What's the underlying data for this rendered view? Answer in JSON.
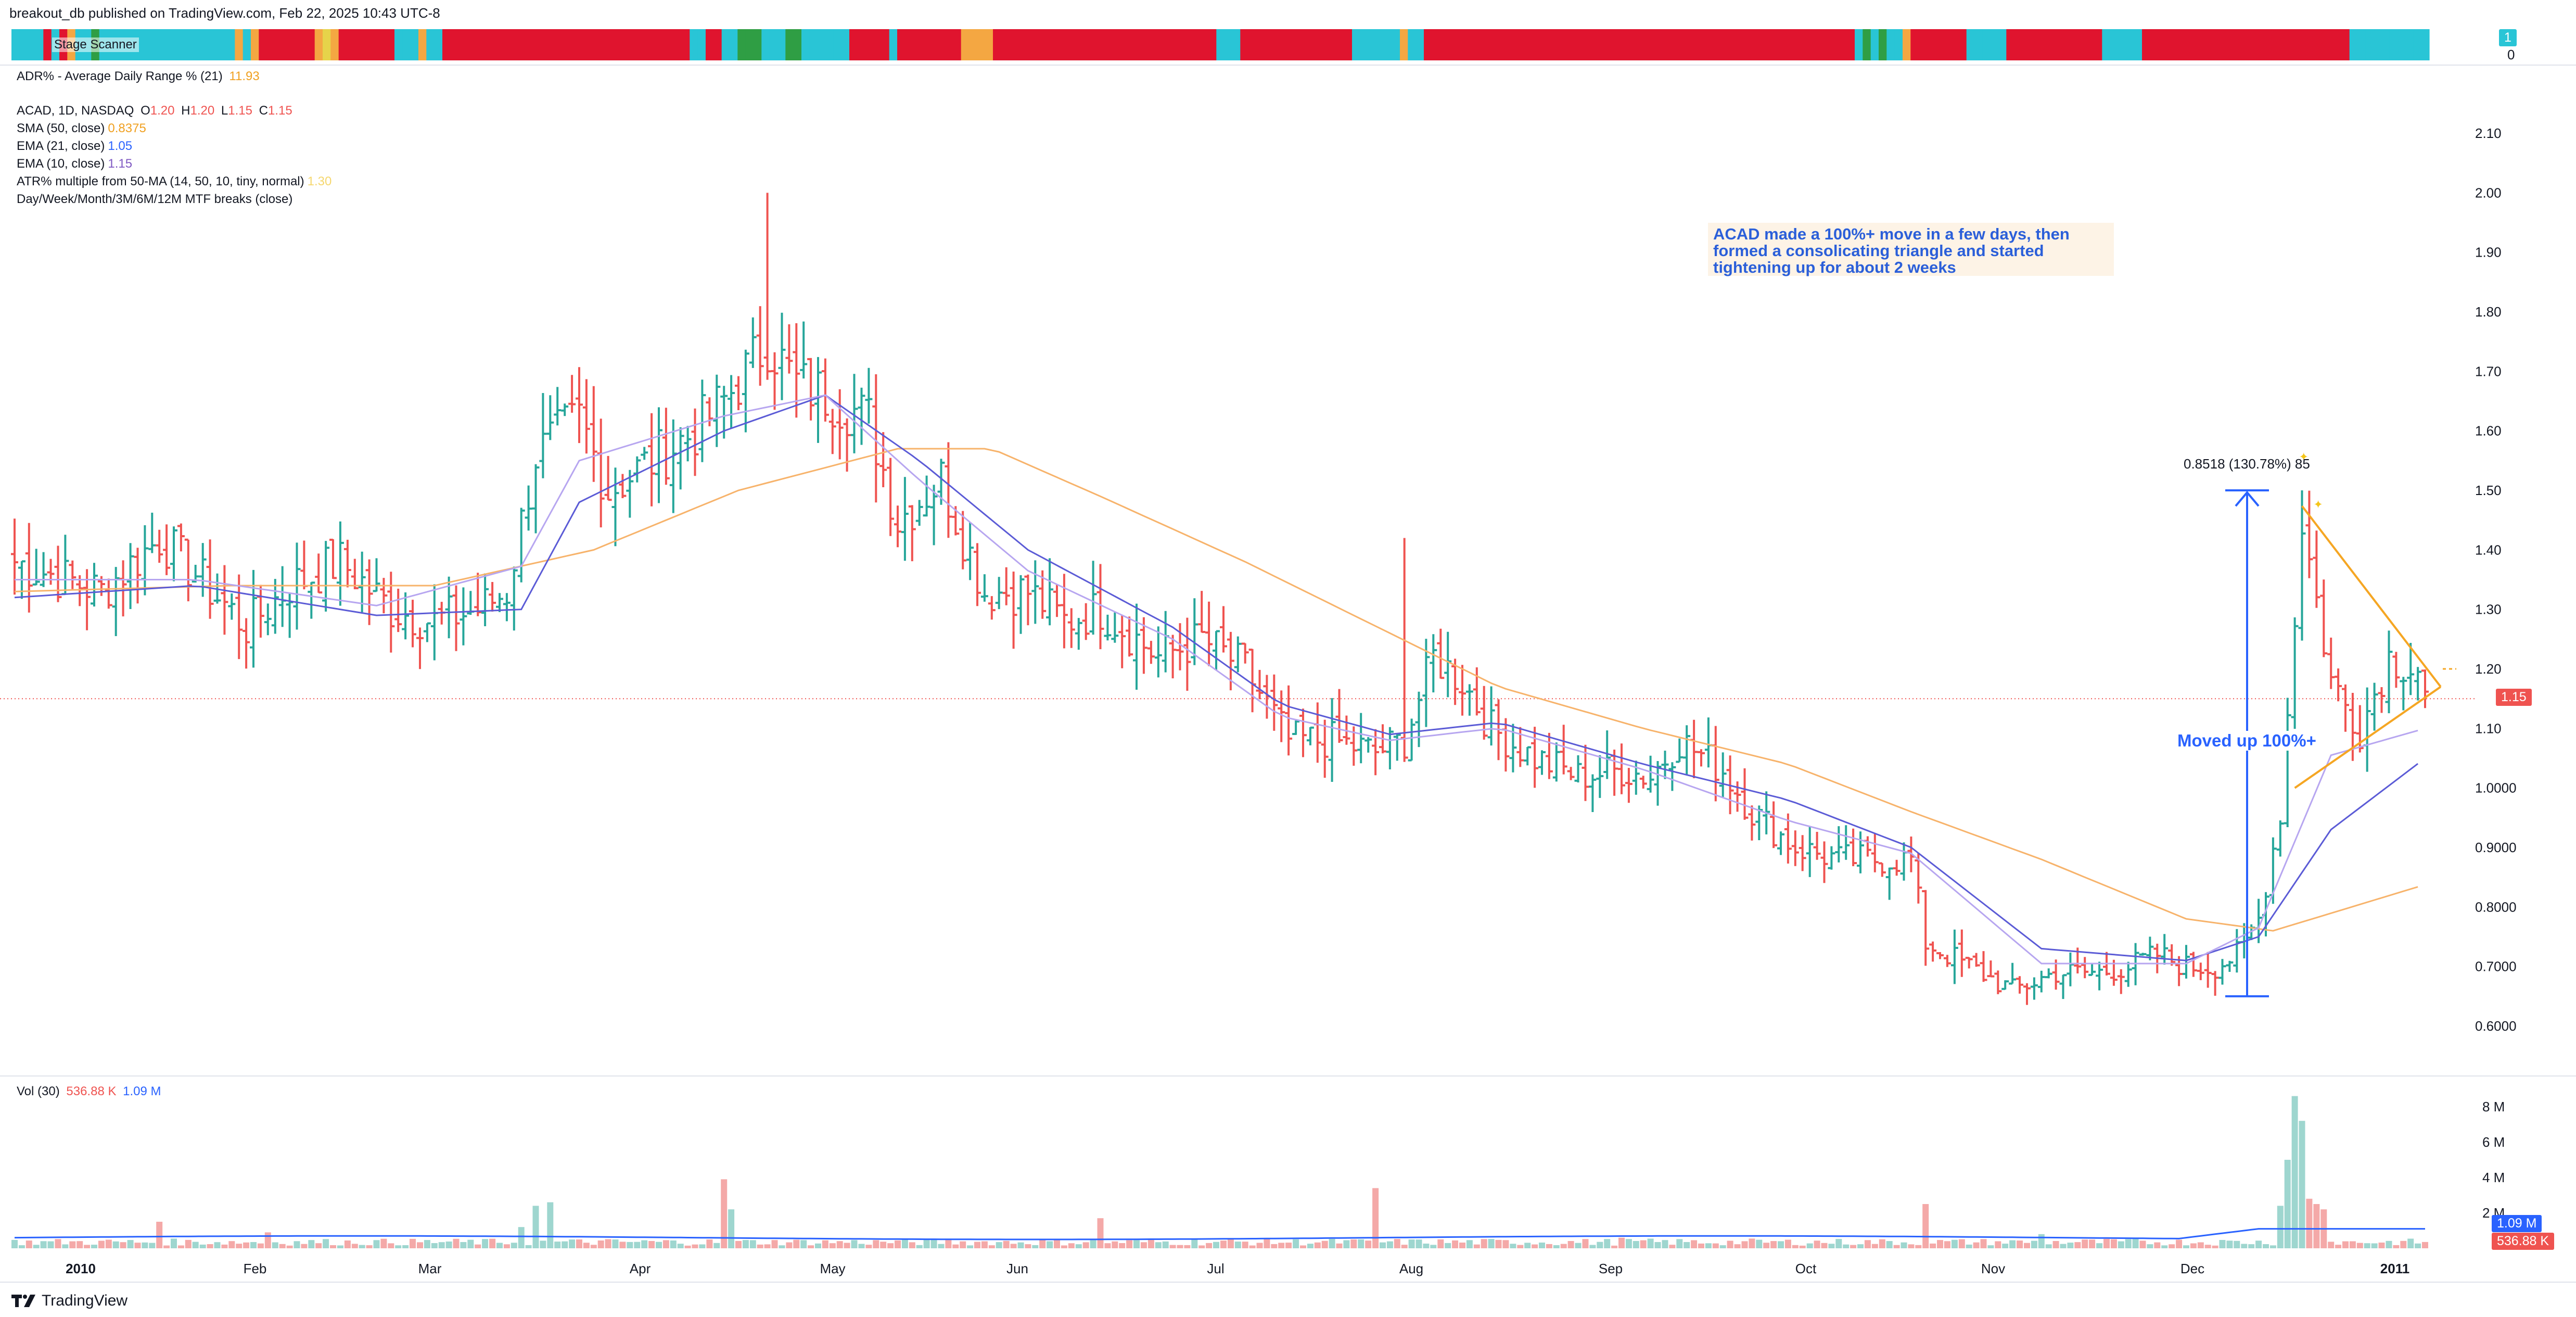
{
  "header": {
    "published_text": "breakout_db published on TradingView.com, Feb 22, 2025 10:43 UTC-8"
  },
  "stage_strip": {
    "label": "Stage Scanner",
    "right_value_top": "1",
    "right_value_bottom": "0",
    "palette": {
      "red": "#e0142e",
      "cyan": "#29c5d6",
      "orange": "#f4a742",
      "green": "#2f9e44",
      "dkgreen": "#1b7a4a",
      "yellow": "#e6d34a"
    },
    "sequence": "ccccrcroccgcccccccccccccccccocorrrrrrroyorrrrrrrcccoccrrrrrrrrrrrrrrrrrrrrrrrrrrrrrrrccrrccgggcccggccccccrrrrrcrrrrrrrroooorrrrrrrrrrrrrrrrrrrrrrrrrrrrcccrrrrrrrrrrrrrrccccccoccrrrrrrrrrrrrrrrrrrrrrrrrrrrrrrrrrrrrrrrrrrrrrrrrrrrrrrcgcgccorrrrrrrcccccrrrrrrrrrrrrcccccrrrrrrrrrrrrrrrrrrrrrrrrrrcccccccccc"
  },
  "adr_legend": {
    "label": "ADR% - Average Daily Range % (21)",
    "value": "11.93"
  },
  "price_legend": {
    "symbol": "ACAD, 1D, NASDAQ",
    "o_label": "O",
    "o": "1.20",
    "h_label": "H",
    "h": "1.20",
    "l_label": "L",
    "l": "1.15",
    "c_label": "C",
    "c": "1.15",
    "sma_label": "SMA (50, close)",
    "sma": "0.8375",
    "ema21_label": "EMA (21, close)",
    "ema21": "1.05",
    "ema10_label": "EMA (10, close)",
    "ema10": "1.15",
    "atr_label": "ATR% multiple from 50-MA (14, 50, 10, tiny, normal)",
    "atr": "1.30",
    "mtf_label": "Day/Week/Month/3M/6M/12M MTF breaks (close)"
  },
  "vol_legend": {
    "label": "Vol (30)",
    "v1": "536.88 K",
    "v2": "1.09 M"
  },
  "annotation": {
    "line1": "ACAD made a 100%+ move in a few days, then",
    "line2": "formed a consolicating triangle and started",
    "line3": "tightening up for about 2 weeks"
  },
  "measure_label": "0.8518 (130.78%) 85",
  "moved_label": "Moved up 100%+",
  "price_badge": "1.15",
  "vol_badges": [
    "1.09 M",
    "536.88 K"
  ],
  "colors": {
    "up": "#26a69a",
    "down": "#ef5350",
    "sma": "#f7b36b",
    "ema21": "#5b5bd6",
    "ema10": "#b7a6f0",
    "measure": "#2962ff",
    "triangle": "#f5a623",
    "vol_ma": "#2962ff"
  },
  "footer": {
    "brand": "TradingView"
  },
  "chart_data": [
    {
      "type": "candlestick",
      "title": "ACAD, 1D, NASDAQ",
      "ylim": [
        0.55,
        2.15
      ],
      "y_ticks": [
        "2.10",
        "2.00",
        "1.90",
        "1.80",
        "1.70",
        "1.60",
        "1.50",
        "1.40",
        "1.30",
        "1.20",
        "1.10",
        "1.0000",
        "0.9000",
        "0.8000",
        "0.7000",
        "0.6000"
      ],
      "x_labels": [
        "2010",
        "Feb",
        "Mar",
        "Apr",
        "May",
        "Jun",
        "Jul",
        "Aug",
        "Sep",
        "Oct",
        "Nov",
        "Dec",
        "2011"
      ],
      "anchors": [
        [
          0,
          1.38
        ],
        [
          12,
          1.33
        ],
        [
          20,
          1.42
        ],
        [
          25,
          1.36
        ],
        [
          32,
          1.27
        ],
        [
          38,
          1.34
        ],
        [
          45,
          1.38
        ],
        [
          52,
          1.3
        ],
        [
          58,
          1.28
        ],
        [
          64,
          1.3
        ],
        [
          68,
          1.33
        ],
        [
          72,
          1.56
        ],
        [
          78,
          1.62
        ],
        [
          82,
          1.5
        ],
        [
          88,
          1.55
        ],
        [
          94,
          1.6
        ],
        [
          98,
          1.65
        ],
        [
          104,
          1.75
        ],
        [
          108,
          1.68
        ],
        [
          112,
          1.66
        ],
        [
          118,
          1.62
        ],
        [
          122,
          1.45
        ],
        [
          128,
          1.52
        ],
        [
          134,
          1.33
        ],
        [
          140,
          1.33
        ],
        [
          145,
          1.28
        ],
        [
          150,
          1.3
        ],
        [
          158,
          1.22
        ],
        [
          164,
          1.25
        ],
        [
          170,
          1.2
        ],
        [
          176,
          1.08
        ],
        [
          182,
          1.08
        ],
        [
          188,
          1.06
        ],
        [
          192,
          1.08
        ],
        [
          196,
          1.22
        ],
        [
          200,
          1.18
        ],
        [
          204,
          1.1
        ],
        [
          210,
          1.05
        ],
        [
          216,
          1.02
        ],
        [
          222,
          1.03
        ],
        [
          226,
          1.02
        ],
        [
          230,
          1.08
        ],
        [
          236,
          1.03
        ],
        [
          240,
          0.96
        ],
        [
          246,
          0.9
        ],
        [
          252,
          0.88
        ],
        [
          258,
          0.88
        ],
        [
          262,
          0.88
        ],
        [
          264,
          0.74
        ],
        [
          270,
          0.7
        ],
        [
          276,
          0.66
        ],
        [
          282,
          0.69
        ],
        [
          288,
          0.69
        ],
        [
          292,
          0.7
        ],
        [
          296,
          0.72
        ],
        [
          300,
          0.7
        ],
        [
          304,
          0.7
        ],
        [
          307,
          0.72
        ],
        [
          310,
          0.78
        ],
        [
          313,
          0.96
        ],
        [
          316,
          1.45
        ],
        [
          320,
          1.18
        ],
        [
          324,
          1.1
        ],
        [
          328,
          1.22
        ],
        [
          332,
          1.2
        ],
        [
          333,
          1.15
        ]
      ],
      "sma50_points": [
        [
          0,
          1.33
        ],
        [
          30,
          1.34
        ],
        [
          58,
          1.34
        ],
        [
          80,
          1.4
        ],
        [
          100,
          1.5
        ],
        [
          122,
          1.57
        ],
        [
          135,
          1.57
        ],
        [
          150,
          1.49
        ],
        [
          170,
          1.38
        ],
        [
          185,
          1.29
        ],
        [
          205,
          1.17
        ],
        [
          225,
          1.1
        ],
        [
          245,
          1.04
        ],
        [
          262,
          0.96
        ],
        [
          280,
          0.88
        ],
        [
          300,
          0.78
        ],
        [
          312,
          0.76
        ],
        [
          333,
          0.8375
        ]
      ],
      "ema21_points": [
        [
          0,
          1.32
        ],
        [
          25,
          1.34
        ],
        [
          50,
          1.29
        ],
        [
          70,
          1.3
        ],
        [
          78,
          1.48
        ],
        [
          98,
          1.6
        ],
        [
          112,
          1.66
        ],
        [
          125,
          1.55
        ],
        [
          140,
          1.4
        ],
        [
          160,
          1.27
        ],
        [
          175,
          1.14
        ],
        [
          190,
          1.09
        ],
        [
          205,
          1.11
        ],
        [
          225,
          1.04
        ],
        [
          245,
          0.98
        ],
        [
          262,
          0.9
        ],
        [
          280,
          0.73
        ],
        [
          300,
          0.71
        ],
        [
          310,
          0.75
        ],
        [
          320,
          0.93
        ],
        [
          333,
          1.05
        ]
      ],
      "measure": {
        "from_value": 0.65,
        "to_value": 1.5,
        "change": "0.8518 (130.78%)"
      },
      "triangle": {
        "upper": [
          [
            316,
            1.5
          ],
          [
            333,
            1.17
          ]
        ],
        "lower": [
          [
            315,
            1.0
          ],
          [
            333,
            1.17
          ]
        ]
      },
      "last_price": 1.15
    },
    {
      "type": "bar",
      "title": "Vol (30)",
      "ylim": [
        0,
        8800000
      ],
      "y_ticks": [
        "8 M",
        "6 M",
        "4 M",
        "2 M"
      ],
      "spikes": [
        [
          20,
          1.5
        ],
        [
          35,
          0.9
        ],
        [
          70,
          1.2
        ],
        [
          72,
          2.4
        ],
        [
          74,
          2.6
        ],
        [
          98,
          3.9
        ],
        [
          99,
          2.2
        ],
        [
          150,
          1.7
        ],
        [
          188,
          3.4
        ],
        [
          222,
          0.6
        ],
        [
          264,
          2.5
        ],
        [
          280,
          0.8
        ],
        [
          313,
          2.4
        ],
        [
          314,
          5.0
        ],
        [
          315,
          8.6
        ],
        [
          316,
          7.2
        ],
        [
          317,
          2.8
        ],
        [
          318,
          2.5
        ],
        [
          319,
          2.2
        ]
      ]
    }
  ]
}
